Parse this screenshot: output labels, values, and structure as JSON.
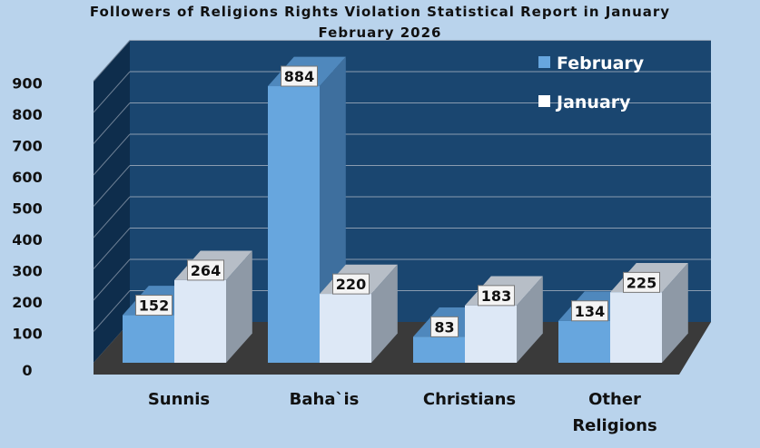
{
  "chart_data": {
    "type": "bar",
    "title_lines": [
      "Followers of Religions Rights Violation Statistical Report in January",
      "February 2026"
    ],
    "categories": [
      "Sunnis",
      "Baha`is",
      "Christians",
      "Other Religions"
    ],
    "series": [
      {
        "name": "February",
        "values": [
          152,
          884,
          83,
          134
        ]
      },
      {
        "name": "January",
        "values": [
          264,
          220,
          183,
          225
        ]
      }
    ],
    "y_ticks": [
      "0",
      "100",
      "200",
      "300",
      "400",
      "500",
      "600",
      "700",
      "800",
      "900"
    ],
    "ylim": [
      0,
      900
    ],
    "grid": true,
    "legend_position": "top-right",
    "style": "3d-column",
    "colors": {
      "background": "#b9d3ec",
      "wall": "#1a4670",
      "side_wall": "#0e2d4c",
      "floor": "#3a3a3a",
      "february_front": "#67a6de",
      "february_top": "#4f88bd",
      "february_side": "#3e6f9e",
      "january_front": "#dde8f6",
      "january_top": "#b7bec7",
      "january_side": "#8e99a6"
    }
  }
}
